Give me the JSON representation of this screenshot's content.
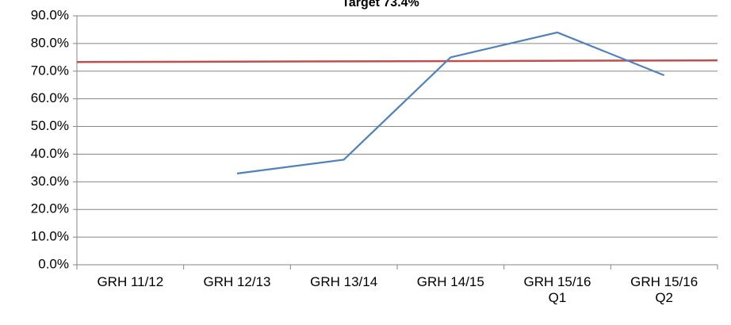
{
  "chart_data": {
    "type": "line",
    "title": "Target 73.4%",
    "categories": [
      "GRH 11/12",
      "GRH 12/13",
      "GRH 13/14",
      "GRH 14/15",
      "GRH 15/16 Q1",
      "GRH 15/16 Q2"
    ],
    "series": [
      {
        "color": "#4f81bd",
        "values": [
          null,
          33,
          38,
          75,
          84,
          68.5
        ]
      }
    ],
    "target_line": {
      "color": "#c0504d",
      "values": [
        73.3,
        73.9
      ]
    },
    "ylim": [
      0,
      90
    ],
    "yticks": [
      {
        "value": 0,
        "label": "0.0%"
      },
      {
        "value": 10,
        "label": "10.0%"
      },
      {
        "value": 20,
        "label": "20.0%"
      },
      {
        "value": 30,
        "label": "30.0%"
      },
      {
        "value": 40,
        "label": "40.0%"
      },
      {
        "value": 50,
        "label": "50.0%"
      },
      {
        "value": 60,
        "label": "60.0%"
      },
      {
        "value": 70,
        "label": "70.0%"
      },
      {
        "value": 80,
        "label": "80.0%"
      },
      {
        "value": 90,
        "label": "90.0%"
      }
    ],
    "grid": true
  }
}
